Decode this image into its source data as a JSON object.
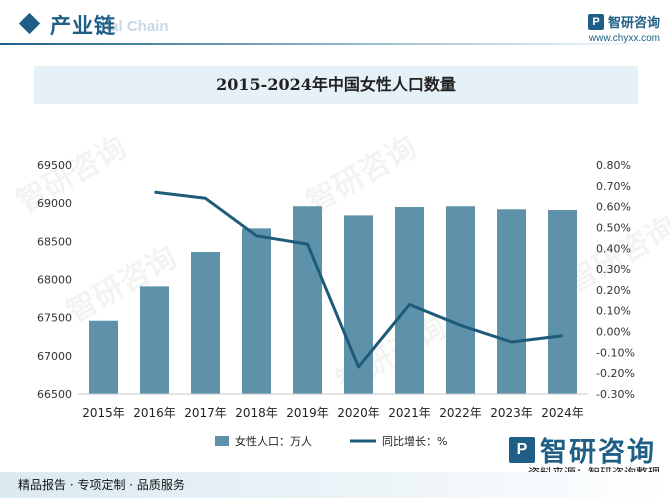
{
  "header": {
    "section_title": "产业链",
    "section_sub": "ial Chain",
    "brand_logo": "P",
    "brand_name": "智研咨询",
    "brand_url": "www.chyxx.com"
  },
  "watermark_text": "智研咨询",
  "chart_data": {
    "type": "bar",
    "title": "2015-2024年中国女性人口数量",
    "categories": [
      "2015年",
      "2016年",
      "2017年",
      "2018年",
      "2019年",
      "2020年",
      "2021年",
      "2022年",
      "2023年",
      "2024年"
    ],
    "series": [
      {
        "name": "女性人口：万人",
        "kind": "bar",
        "axis": "left",
        "values": [
          67460,
          67910,
          68360,
          68670,
          68960,
          68840,
          68950,
          68960,
          68920,
          68910
        ]
      },
      {
        "name": "同比增长：%",
        "kind": "line",
        "axis": "right",
        "values": [
          null,
          0.67,
          0.64,
          0.46,
          0.42,
          -0.17,
          0.13,
          0.03,
          -0.05,
          -0.02
        ]
      }
    ],
    "y_left": {
      "min": 66500,
      "max": 69500,
      "ticks": [
        66500,
        67000,
        67500,
        68000,
        68500,
        69000,
        69500
      ]
    },
    "y_right": {
      "min": -0.3,
      "max": 0.8,
      "ticks": [
        "-0.30%",
        "-0.20%",
        "-0.10%",
        "0.00%",
        "0.10%",
        "0.20%",
        "0.30%",
        "0.40%",
        "0.50%",
        "0.60%",
        "0.70%",
        "0.80%"
      ],
      "tick_values": [
        -0.3,
        -0.2,
        -0.1,
        0.0,
        0.1,
        0.2,
        0.3,
        0.4,
        0.5,
        0.6,
        0.7,
        0.8
      ]
    },
    "grid": false,
    "legend": "bottom",
    "colors": {
      "bar": "#5e92ab",
      "line": "#1d5c78"
    }
  },
  "footer": {
    "left_text": "精品报告 · 专项定制 · 品质服务",
    "source_text": "资料来源：智研咨询整理",
    "brand_logo": "P",
    "brand_name": "智研咨询"
  }
}
